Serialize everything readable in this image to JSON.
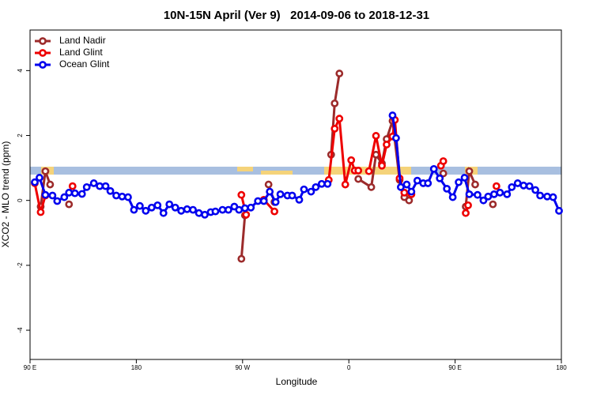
{
  "chart_data": {
    "type": "line",
    "title": "10N-15N April (Ver 9)   2014-09-06 to 2018-12-31",
    "x_label": "Longitude",
    "y_label": "XCO2 - MLO trend (ppm)",
    "xlim": [
      90,
      540
    ],
    "xticks": [
      {
        "value": 90,
        "label": "90 E"
      },
      {
        "value": 180,
        "label": "180"
      },
      {
        "value": 270,
        "label": "90 W"
      },
      {
        "value": 360,
        "label": "0"
      },
      {
        "value": 450,
        "label": "90 E"
      },
      {
        "value": 540,
        "label": "180"
      }
    ],
    "ylim": [
      -4.9,
      5.25
    ],
    "yticks": [
      -4,
      -2,
      0,
      2,
      4
    ],
    "legend": "top-left",
    "series": [
      {
        "name": "Land Nadir",
        "color": "#9c2b2b",
        "x": [
          99,
          103,
          107,
          115,
          123,
          200,
          269,
          272,
          285,
          292,
          297,
          320,
          345,
          348,
          352,
          360,
          368,
          379,
          383,
          388,
          392,
          397,
          403,
          407,
          411,
          425,
          440,
          450,
          459,
          462,
          467,
          475,
          482
        ],
        "values": [
          -0.19,
          0.9,
          0.49,
          null,
          -0.12,
          null,
          -1.8,
          -0.46,
          null,
          0.49,
          -0.05,
          null,
          1.41,
          2.99,
          3.91,
          null,
          0.66,
          0.41,
          1.41,
          1.14,
          1.89,
          2.45,
          0.63,
          0.1,
          0.0,
          null,
          0.83,
          null,
          -0.19,
          0.9,
          0.49,
          null,
          -0.12
        ]
      },
      {
        "name": "Land Glint",
        "color": "#ee0000",
        "x": [
          94,
          99,
          103,
          110,
          126,
          200,
          269,
          273,
          285,
          288,
          297,
          320,
          343,
          348,
          352,
          357,
          362,
          365,
          368,
          372,
          377,
          383,
          388,
          392,
          397,
          399,
          403,
          407,
          413,
          430,
          438,
          440,
          450,
          459,
          461,
          470,
          485
        ],
        "values": [
          0.53,
          -0.36,
          0.15,
          null,
          0.44,
          null,
          0.17,
          -0.44,
          null,
          0.02,
          -0.34,
          null,
          0.63,
          2.21,
          2.52,
          0.49,
          1.24,
          0.92,
          0.92,
          null,
          0.9,
          1.99,
          1.07,
          1.72,
          1.97,
          2.48,
          0.68,
          0.24,
          0.19,
          null,
          1.07,
          1.21,
          null,
          -0.39,
          -0.15,
          null,
          0.44
        ]
      },
      {
        "name": "Ocean Glint",
        "color": "#0000ee",
        "x": [
          94,
          98,
          103,
          109,
          113,
          119,
          123,
          128,
          134,
          138,
          144,
          149,
          154,
          158,
          163,
          168,
          173,
          178,
          183,
          188,
          193,
          198,
          203,
          208,
          213,
          218,
          223,
          228,
          233,
          238,
          243,
          247,
          253,
          258,
          263,
          267,
          272,
          277,
          283,
          288,
          293,
          298,
          302,
          308,
          312,
          318,
          322,
          328,
          332,
          337,
          342,
          370,
          397,
          400,
          404,
          409,
          413,
          418,
          423,
          427,
          432,
          437,
          443,
          448,
          453,
          458,
          462,
          469,
          474,
          478,
          483,
          488,
          494,
          498,
          503,
          508,
          513,
          518,
          522,
          528,
          533,
          538
        ],
        "values": [
          0.56,
          0.7,
          0.17,
          0.15,
          -0.02,
          0.1,
          0.24,
          0.22,
          0.2,
          0.41,
          0.53,
          0.44,
          0.44,
          0.29,
          0.15,
          0.12,
          0.1,
          -0.29,
          -0.17,
          -0.32,
          -0.22,
          -0.15,
          -0.39,
          -0.12,
          -0.22,
          -0.32,
          -0.27,
          -0.29,
          -0.39,
          -0.44,
          -0.36,
          -0.34,
          -0.29,
          -0.29,
          -0.19,
          -0.29,
          -0.24,
          -0.22,
          -0.02,
          -0.02,
          0.27,
          -0.05,
          0.19,
          0.15,
          0.15,
          0.02,
          0.34,
          0.27,
          0.41,
          0.51,
          0.51,
          null,
          2.62,
          1.92,
          0.41,
          0.49,
          0.27,
          0.61,
          0.53,
          0.53,
          0.97,
          0.68,
          0.36,
          0.1,
          0.56,
          0.7,
          0.19,
          0.17,
          0.0,
          0.12,
          0.19,
          0.24,
          0.19,
          0.41,
          0.53,
          0.46,
          0.44,
          0.32,
          0.15,
          0.12,
          0.1,
          -0.32
        ]
      }
    ]
  }
}
